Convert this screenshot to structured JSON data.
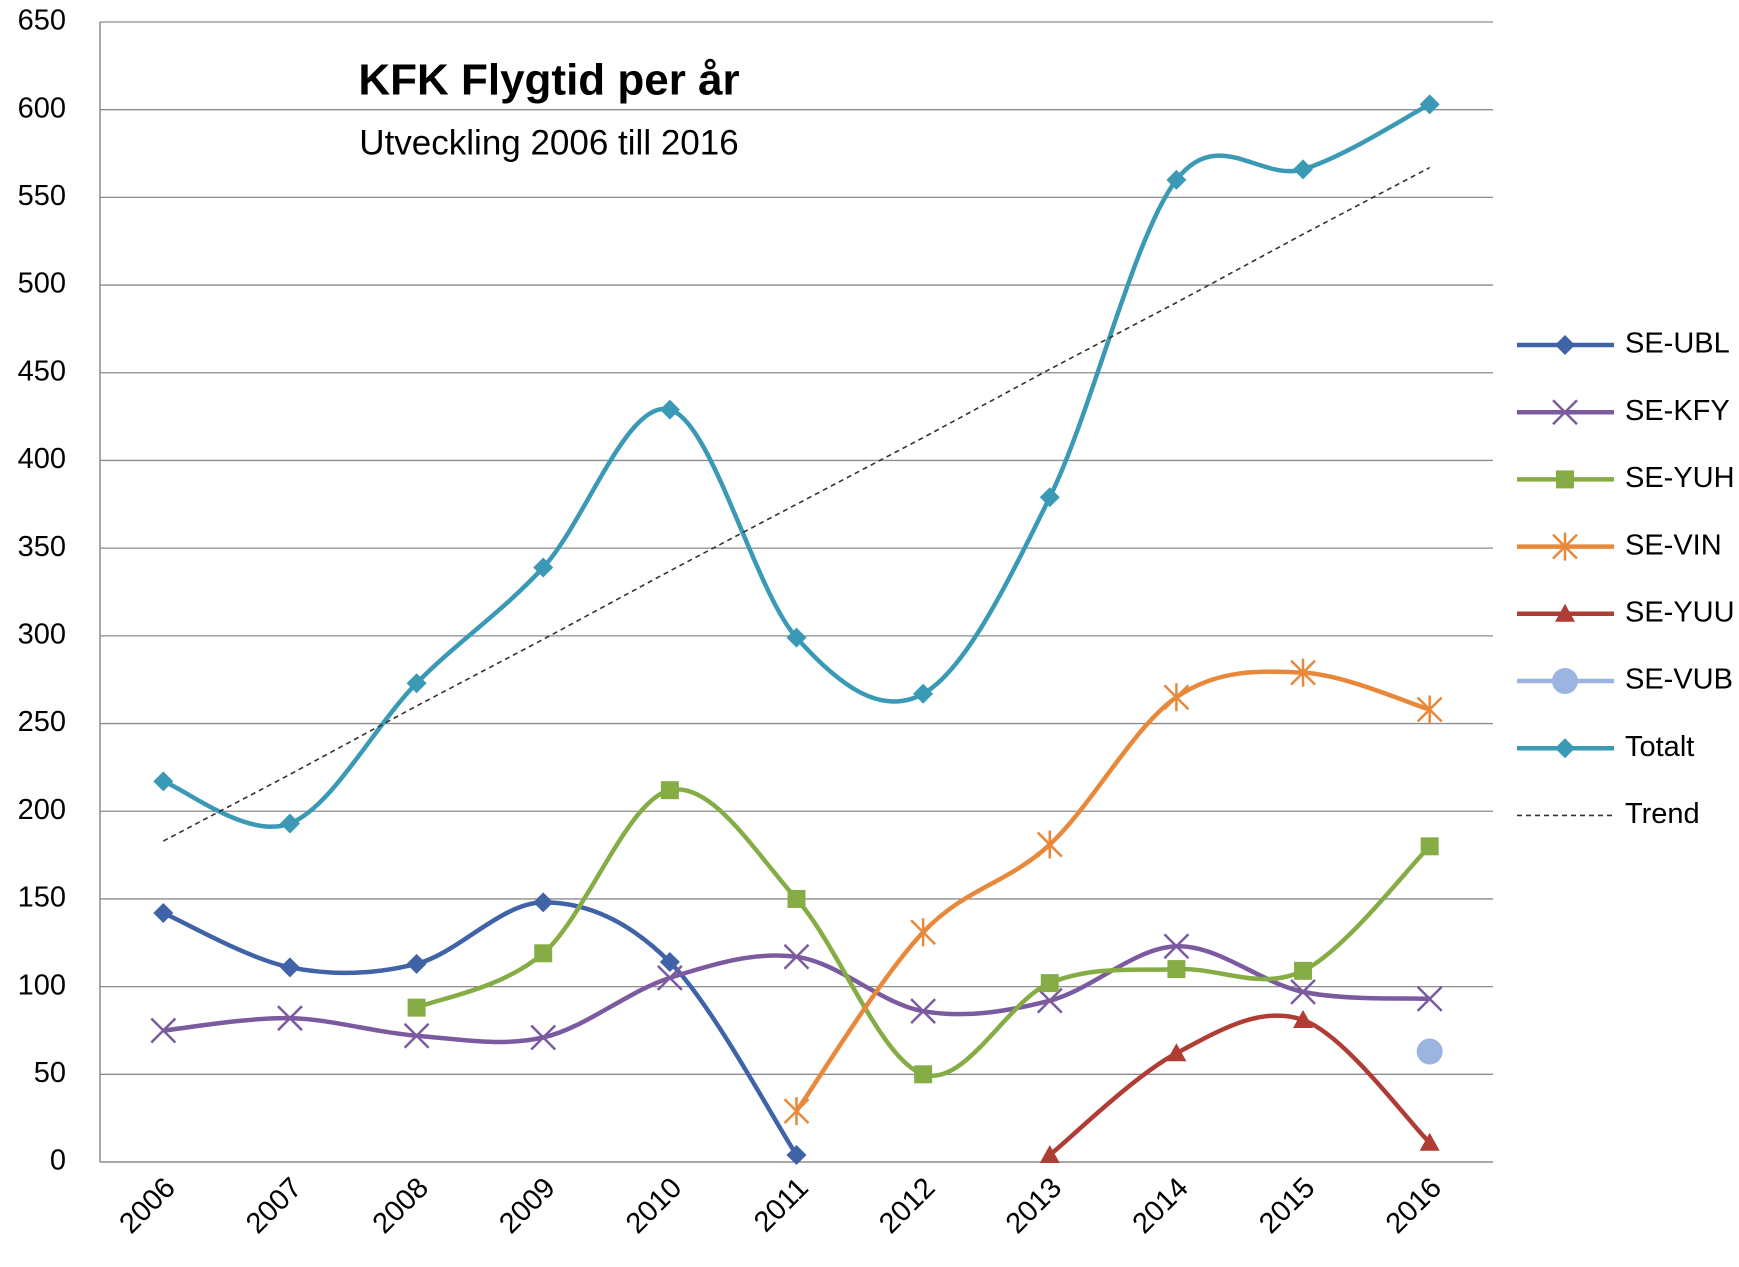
{
  "chart_data": {
    "type": "line",
    "title": "KFK Flygtid per år",
    "subtitle": "Utveckling 2006 till 2016",
    "categories": [
      "2006",
      "2007",
      "2008",
      "2009",
      "2010",
      "2011",
      "2012",
      "2013",
      "2014",
      "2015",
      "2016"
    ],
    "ylim": [
      0,
      650
    ],
    "yticks": [
      0,
      50,
      100,
      150,
      200,
      250,
      300,
      350,
      400,
      450,
      500,
      550,
      600,
      650
    ],
    "grid": true,
    "smooth": true,
    "legend": "right",
    "series": [
      {
        "name": "SE-UBL",
        "color": "#4063a8",
        "marker": "diamond",
        "values": [
          142,
          111,
          113,
          148,
          114,
          4,
          null,
          null,
          null,
          null,
          null
        ]
      },
      {
        "name": "SE-KFY",
        "color": "#7b5aa0",
        "marker": "x",
        "values": [
          75,
          82,
          72,
          71,
          105,
          117,
          86,
          92,
          123,
          97,
          93
        ]
      },
      {
        "name": "SE-YUH",
        "color": "#86ad45",
        "marker": "square",
        "values": [
          null,
          null,
          88,
          119,
          212,
          150,
          50,
          102,
          110,
          109,
          180
        ]
      },
      {
        "name": "SE-VIN",
        "color": "#e8883a",
        "marker": "star",
        "values": [
          null,
          null,
          null,
          null,
          null,
          29,
          131,
          181,
          265,
          279,
          258
        ]
      },
      {
        "name": "SE-YUU",
        "color": "#b03d35",
        "marker": "triangle",
        "values": [
          null,
          null,
          null,
          null,
          null,
          null,
          null,
          4,
          62,
          81,
          11
        ]
      },
      {
        "name": "SE-VUB",
        "color": "#9cb5e0",
        "marker": "circle",
        "values": [
          null,
          null,
          null,
          null,
          null,
          null,
          null,
          null,
          null,
          null,
          63
        ]
      },
      {
        "name": "Totalt",
        "color": "#3a9ab5",
        "marker": "diamond",
        "values": [
          217,
          193,
          273,
          339,
          429,
          299,
          267,
          379,
          560,
          566,
          603
        ]
      },
      {
        "name": "Trend",
        "color": "#333333",
        "marker": "none",
        "dashed": true,
        "values": [
          183,
          221,
          260,
          298,
          337,
          375,
          413,
          452,
          490,
          529,
          567
        ]
      }
    ]
  }
}
